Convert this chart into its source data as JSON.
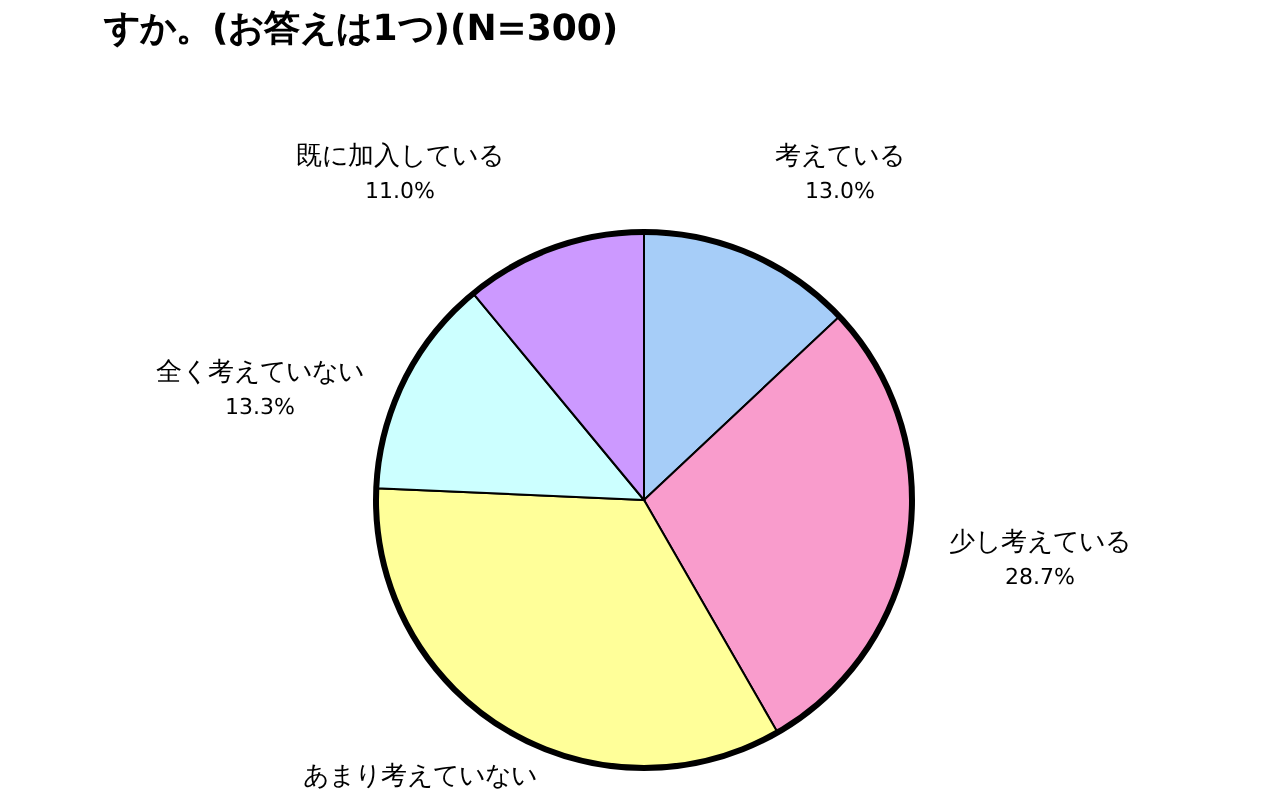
{
  "chart_data": {
    "type": "pie",
    "title": "すか。(お答えは1つ)(N=300)",
    "categories": [
      "考えている",
      "少し考えている",
      "あまり考えていない",
      "全く考えていない",
      "既に加入している"
    ],
    "values": [
      13.0,
      28.7,
      34.0,
      13.3,
      11.0
    ],
    "value_labels": [
      "13.0%",
      "28.7%",
      null,
      "13.3%",
      "11.0%"
    ],
    "colors": [
      "#a6cdf8",
      "#f99ccc",
      "#ffff99",
      "#ccffff",
      "#cc99ff"
    ]
  }
}
